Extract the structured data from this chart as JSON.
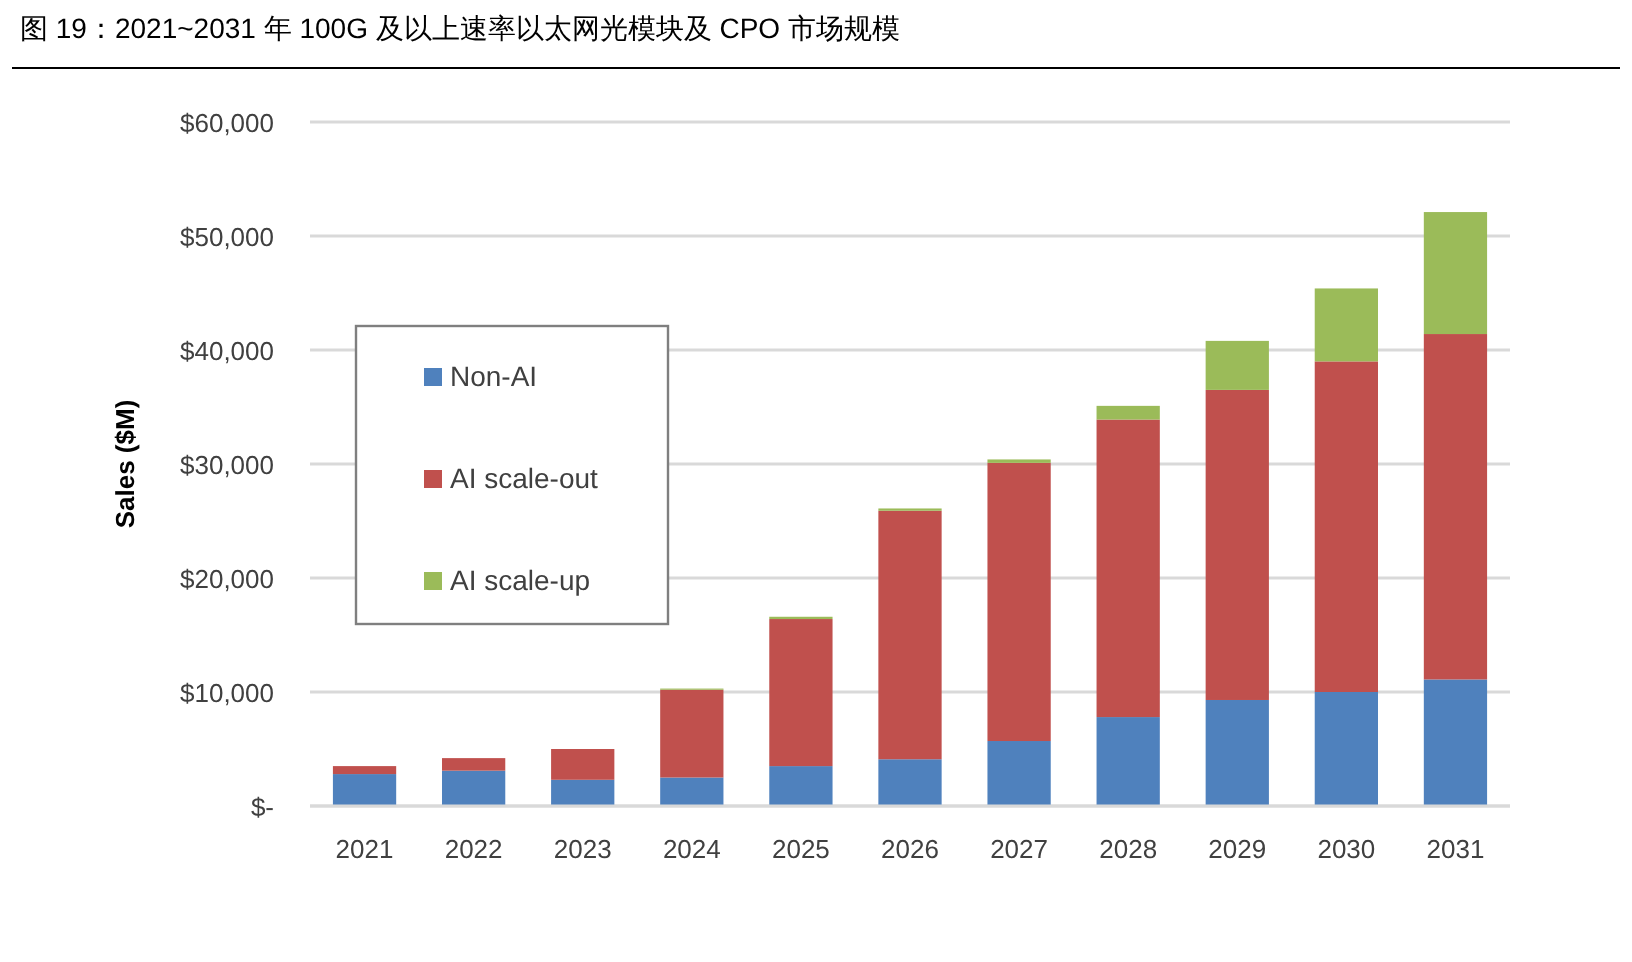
{
  "chart_data": {
    "type": "bar",
    "title": "图 19：2021~2031 年 100G 及以上速率以太网光模块及 CPO 市场规模",
    "ylabel": "Sales ($M)",
    "categories": [
      "2021",
      "2022",
      "2023",
      "2024",
      "2025",
      "2026",
      "2027",
      "2028",
      "2029",
      "2030",
      "2031"
    ],
    "stacked": true,
    "series": [
      {
        "name": "Non-AI",
        "color": "#4f81bd",
        "values": [
          2800,
          3100,
          2300,
          2500,
          3500,
          4100,
          5700,
          7800,
          9300,
          10000,
          11100
        ]
      },
      {
        "name": "AI scale-out",
        "color": "#c0504d",
        "values": [
          700,
          1100,
          2700,
          7700,
          12900,
          21800,
          24400,
          26100,
          27200,
          29000,
          30300
        ]
      },
      {
        "name": "AI scale-up",
        "color": "#9bbb59",
        "values": [
          0,
          0,
          0,
          100,
          200,
          200,
          300,
          1200,
          4300,
          6400,
          10700
        ]
      }
    ],
    "ylim": [
      0,
      60000
    ],
    "yticks": [
      {
        "value": 0,
        "label": "$-"
      },
      {
        "value": 10000,
        "label": "$10,000"
      },
      {
        "value": 20000,
        "label": "$20,000"
      },
      {
        "value": 30000,
        "label": "$30,000"
      },
      {
        "value": 40000,
        "label": "$40,000"
      },
      {
        "value": 50000,
        "label": "$50,000"
      },
      {
        "value": 60000,
        "label": "$60,000"
      }
    ],
    "grid": "y",
    "legend": "left"
  }
}
